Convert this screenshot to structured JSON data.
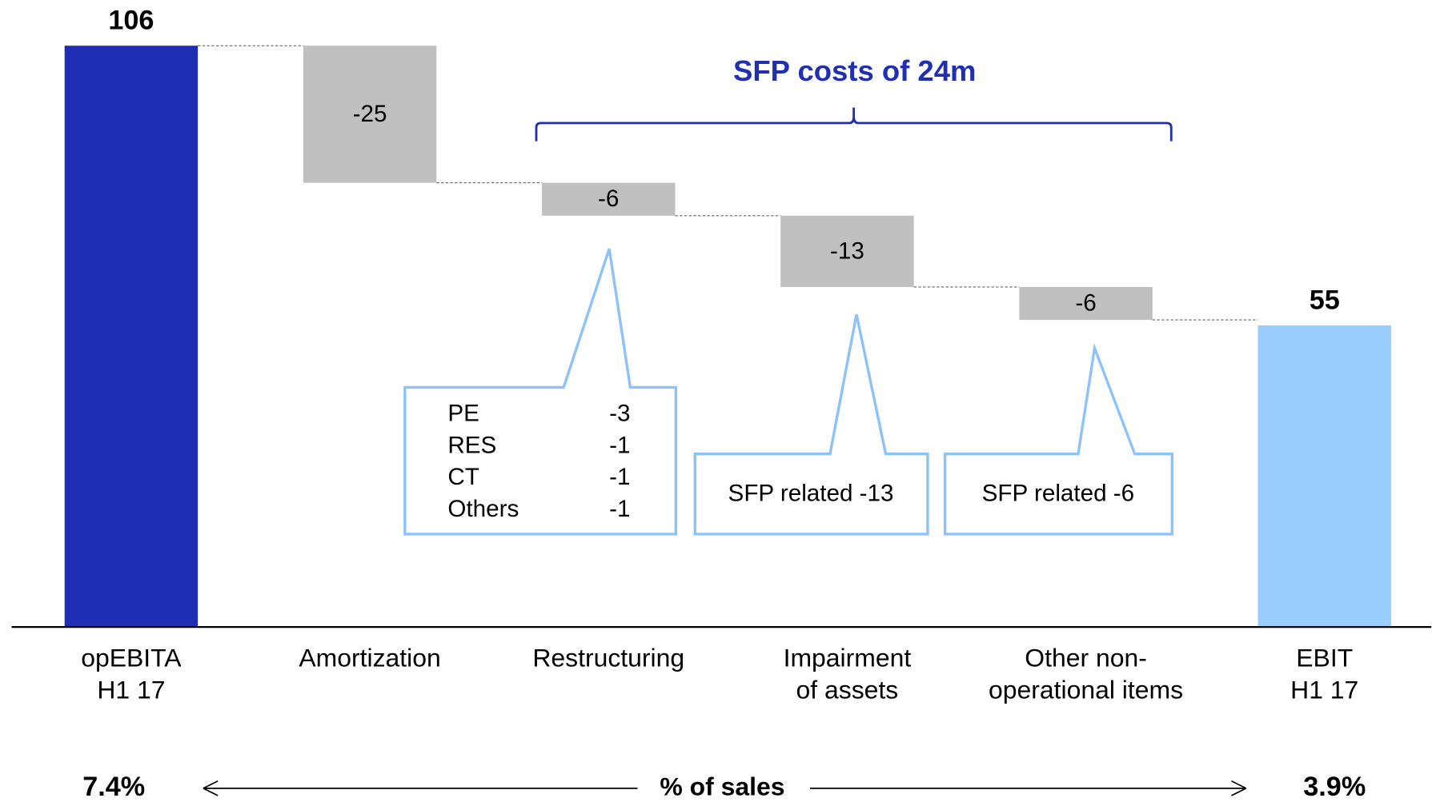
{
  "chart_data": {
    "type": "waterfall",
    "categories": [
      [
        "opEBITA",
        "H1 17"
      ],
      [
        "Amortization"
      ],
      [
        "Restructuring"
      ],
      [
        "Impairment",
        "of assets"
      ],
      [
        "Other non-",
        "operational items"
      ],
      [
        "EBIT",
        "H1 17"
      ]
    ],
    "values": [
      106,
      -25,
      -6,
      -13,
      -6,
      55
    ],
    "is_total": [
      true,
      false,
      false,
      false,
      false,
      true
    ],
    "colors": [
      "#1f2fb5",
      "#c0c0c0",
      "#c0c0c0",
      "#c0c0c0",
      "#c0c0c0",
      "#99ccff"
    ],
    "ylim": [
      0,
      114
    ],
    "bracket_label": "SFP costs of 24m",
    "callouts": [
      {
        "items": [
          {
            "name": "PE",
            "value": "-3"
          },
          {
            "name": "RES",
            "value": "-1"
          },
          {
            "name": "CT",
            "value": "-1"
          },
          {
            "name": "Others",
            "value": "-1"
          }
        ]
      },
      {
        "text": "SFP related -13"
      },
      {
        "text": "SFP related -6"
      }
    ],
    "sales_share": {
      "label": "% of sales",
      "start": "7.4%",
      "end": "3.9%"
    }
  }
}
